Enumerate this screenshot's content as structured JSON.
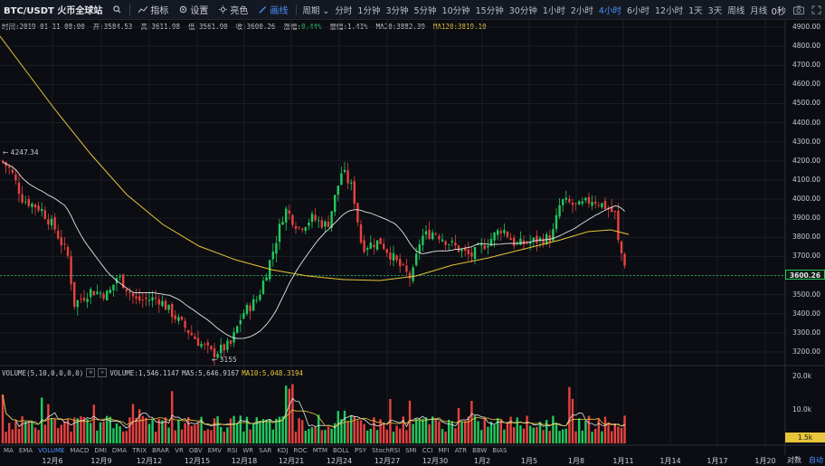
{
  "toolbar": {
    "symbol": "BTC/USDT 火币全球站",
    "indicators_label": "指标",
    "settings_label": "设置",
    "fullscreen_label": "亮色",
    "draw_label": "画线",
    "period_label": "周期",
    "timeframes": [
      "分时",
      "1分钟",
      "3分钟",
      "5分钟",
      "10分钟",
      "15分钟",
      "30分钟",
      "1小时",
      "2小时",
      "4小时",
      "6小时",
      "12小时",
      "1天",
      "3天",
      "周线",
      "月线"
    ],
    "active_timeframe": "4小时",
    "countdown": "0秒"
  },
  "ohlc": {
    "time": "时间:2019-01-11 08:00",
    "open": "开:3584.53",
    "high": "高:3611.98",
    "low": "低:3561.90",
    "close": "收:3600.26",
    "change_label": "涨幅:",
    "change": "0.44%",
    "amplitude": "振幅:1.41%",
    "ma20": "MA20:3882.39",
    "ma120": "MA120:3819.10"
  },
  "volume_header": {
    "title": "VOLUME(5,10,0,0,0,0)",
    "volume": "VOLUME:1,546.1147",
    "ma5": "MA5:5,646.9167",
    "ma10": "MA10:5,048.3194"
  },
  "price_axis": [
    "4900.00",
    "4800.00",
    "4700.00",
    "4600.00",
    "4500.00",
    "4400.00",
    "4300.00",
    "4200.00",
    "4100.00",
    "4000.00",
    "3900.00",
    "3800.00",
    "3700.00",
    "3600.00",
    "3500.00",
    "3400.00",
    "3300.00",
    "3200.00"
  ],
  "current_price": "3600.26",
  "volume_axis": [
    "20.0k",
    "10.0k"
  ],
  "current_volume": "1.5k",
  "annotations": {
    "high": "4247.34",
    "low": "3155"
  },
  "indicator_tabs": [
    "MA",
    "EMA",
    "VOLUME",
    "MACD",
    "DMI",
    "DMA",
    "TRIX",
    "BRAR",
    "VR",
    "OBV",
    "EMV",
    "RSI",
    "WR",
    "SAR",
    "KDJ",
    "ROC",
    "MTM",
    "BOLL",
    "PSY",
    "StochRSI",
    "SMI",
    "CCI",
    "MFI",
    "ATR",
    "BBW",
    "BIAS"
  ],
  "active_indicator": "VOLUME",
  "date_axis": [
    "12月6",
    "12月9",
    "12月12",
    "12月15",
    "12月18",
    "12月21",
    "12月24",
    "12月27",
    "12月30",
    "1月2",
    "1月5",
    "1月8",
    "1月11",
    "1月14",
    "1月17",
    "1月20"
  ],
  "axis_buttons": {
    "log": "对数",
    "auto": "自动"
  },
  "colors": {
    "up": "#21c95e",
    "down": "#e8413f",
    "ma20": "#e6e6e6",
    "ma120": "#e8c53a",
    "accent": "#4c8fff"
  }
}
